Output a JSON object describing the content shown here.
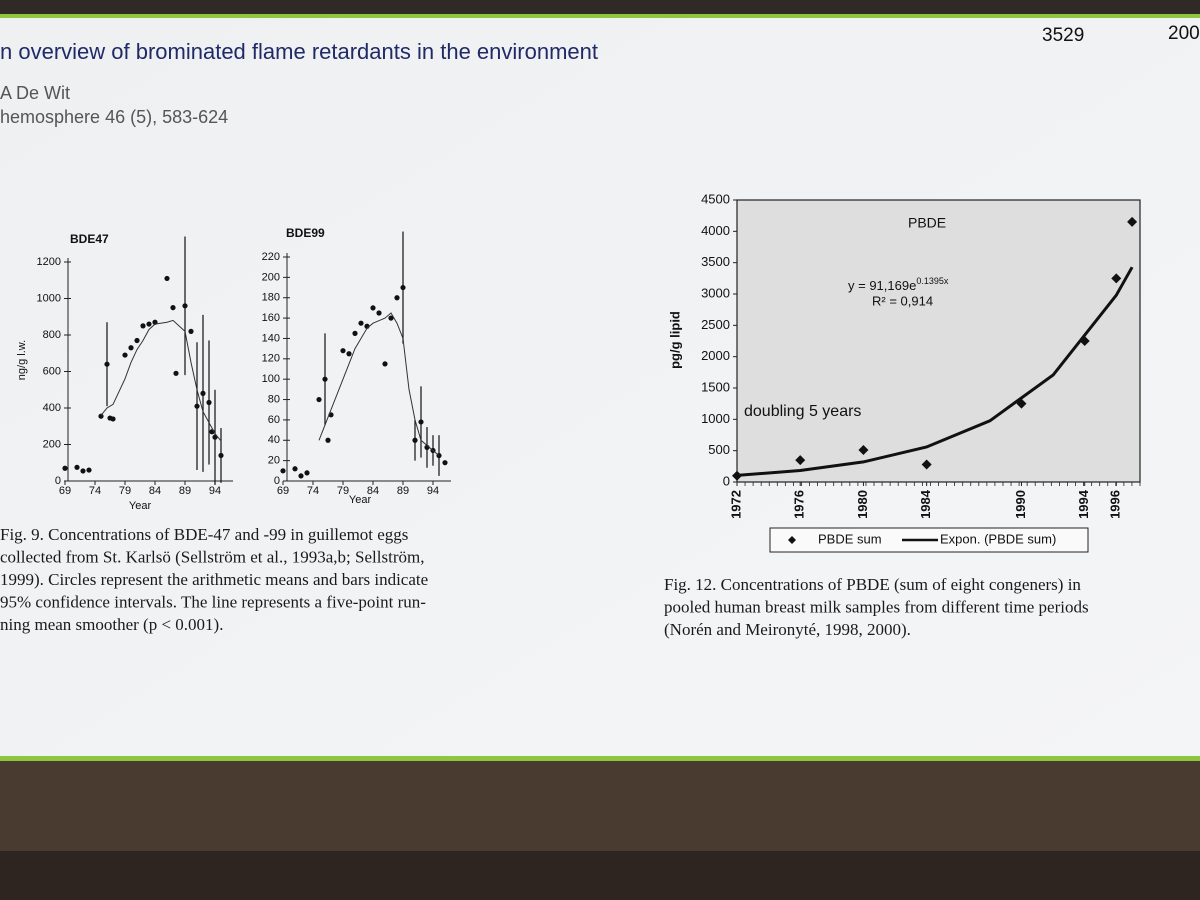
{
  "header": {
    "page_number": "3529",
    "year": "200",
    "title": "n overview of brominated flame retardants in the environment",
    "author": "A De Wit",
    "journal": "hemosphere 46 (5), 583-624"
  },
  "captions": [
    [
      "Fig. 9. Concentrations of BDE-47 and -99 in guillemot eggs",
      "collected from St. Karlsö (Sellström et al., 1993a,b; Sellström,",
      "1999). Circles represent the arithmetic means and bars indicate",
      "95% confidence intervals. The line represents a five-point run-",
      "ning mean smoother (p < 0.001)."
    ],
    [
      "Fig. 12. Concentrations of PBDE (sum of eight congeners) in",
      "pooled human breast milk samples from different time periods",
      "(Norén and Meironyté, 1998, 2000)."
    ]
  ],
  "chart_data": [
    {
      "type": "scatter",
      "title": "BDE47",
      "x_label": "Year",
      "y_label": "ng/g l.w.",
      "xlim": [
        68,
        97
      ],
      "xticks": [
        69,
        74,
        79,
        84,
        89,
        94
      ],
      "ylim": [
        0,
        1200
      ],
      "yticks": [
        0,
        200,
        400,
        600,
        800,
        1000,
        1200
      ],
      "series": [
        {
          "color": "#111111",
          "marker": "circle",
          "x": [
            69,
            71,
            72,
            73,
            75,
            76,
            76.5,
            77,
            79,
            80,
            81,
            82,
            83,
            84,
            86,
            87,
            87.5,
            89,
            90,
            91,
            92,
            93,
            93.5,
            94,
            95
          ],
          "values": [
            70,
            75,
            55,
            60,
            355,
            640,
            345,
            340,
            690,
            730,
            770,
            850,
            860,
            870,
            1110,
            950,
            590,
            960,
            820,
            410,
            480,
            430,
            270,
            240,
            140
          ],
          "errors": [
            null,
            null,
            null,
            null,
            null,
            230,
            null,
            null,
            null,
            null,
            null,
            null,
            null,
            null,
            null,
            null,
            null,
            380,
            null,
            350,
            430,
            340,
            null,
            260,
            150
          ]
        },
        {
          "color": "#333333",
          "style": "line",
          "x": [
            75,
            76,
            77,
            79,
            80,
            81,
            82,
            83,
            84,
            86,
            87,
            88,
            89,
            90,
            91,
            92,
            93,
            94,
            95
          ],
          "values": [
            360,
            400,
            420,
            560,
            650,
            720,
            770,
            830,
            860,
            870,
            880,
            850,
            820,
            650,
            500,
            380,
            320,
            260,
            220
          ]
        }
      ]
    },
    {
      "type": "scatter",
      "title": "BDE99",
      "x_label": "Year",
      "xlim": [
        68,
        97
      ],
      "xticks": [
        69,
        74,
        79,
        84,
        89,
        94
      ],
      "ylim": [
        0,
        220
      ],
      "yticks": [
        0,
        20,
        40,
        60,
        80,
        100,
        120,
        140,
        160,
        180,
        200,
        220
      ],
      "series": [
        {
          "color": "#111111",
          "marker": "circle",
          "x": [
            69,
            71,
            72,
            73,
            75,
            76,
            76.5,
            77,
            79,
            80,
            81,
            82,
            83,
            84,
            85,
            86,
            87,
            88,
            89,
            91,
            92,
            93,
            94,
            95,
            96
          ],
          "values": [
            10,
            12,
            5,
            8,
            80,
            100,
            40,
            65,
            128,
            125,
            145,
            155,
            152,
            170,
            165,
            115,
            160,
            180,
            190,
            40,
            58,
            33,
            30,
            25,
            18
          ],
          "errors": [
            null,
            null,
            null,
            null,
            null,
            45,
            null,
            null,
            null,
            null,
            null,
            null,
            null,
            null,
            null,
            null,
            null,
            null,
            55,
            20,
            35,
            20,
            15,
            20,
            null
          ]
        },
        {
          "color": "#333333",
          "style": "line",
          "x": [
            75,
            77,
            79,
            81,
            83,
            84,
            86,
            87,
            88,
            89,
            90,
            91,
            92,
            94,
            95
          ],
          "values": [
            40,
            70,
            100,
            130,
            150,
            155,
            160,
            165,
            155,
            140,
            90,
            60,
            40,
            30,
            25
          ]
        }
      ]
    },
    {
      "type": "scatter",
      "title": "PBDE",
      "y_label": "pg/g lipid",
      "xlim": [
        1972,
        1997.5
      ],
      "xticks": [
        1972,
        1976,
        1980,
        1984,
        1990,
        1994,
        1996
      ],
      "ylim": [
        0,
        4500
      ],
      "yticks": [
        0,
        500,
        1000,
        1500,
        2000,
        2500,
        3000,
        3500,
        4000,
        4500
      ],
      "equation": {
        "base": "y = 91,169e",
        "exponent": "0.1395x"
      },
      "r_squared": "R² = 0,914",
      "note": "doubling 5 years",
      "series": [
        {
          "name": "PBDE sum",
          "color": "#111111",
          "marker": "diamond",
          "x": [
            1972,
            1976,
            1980,
            1984,
            1990,
            1994,
            1996,
            1997
          ],
          "values": [
            100,
            350,
            510,
            280,
            1250,
            2250,
            3250,
            4150
          ]
        },
        {
          "name": "Expon. (PBDE sum)",
          "color": "#111111",
          "style": "line",
          "x": [
            1972,
            1976,
            1980,
            1984,
            1988,
            1992,
            1996,
            1997
          ],
          "values": [
            105,
            183,
            320,
            559,
            977,
            1707,
            2981,
            3428
          ]
        }
      ]
    }
  ]
}
